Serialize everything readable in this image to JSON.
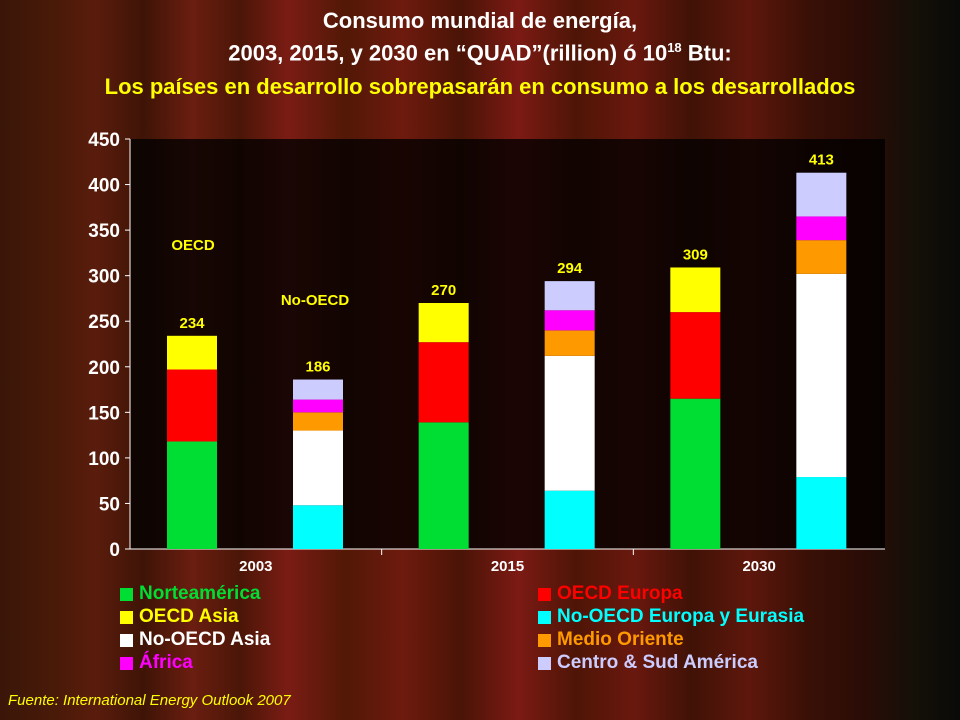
{
  "title_line1": "Consumo mundial de energía,",
  "title_line2_pre": "2003, 2015, y 2030 en “QUAD”(rillion) ó 10",
  "title_line2_sup": "18",
  "title_line2_post": " Btu:",
  "title_line3": "Los países en desarrollo sobrepasarán en consumo a los desarrollados",
  "annotations": {
    "oecd": "OECD",
    "non_oecd": "No-OECD"
  },
  "source": "Fuente: International Energy Outlook 2007",
  "colors": {
    "Norteamérica": "#00dd33",
    "OECD Europa": "#ff0000",
    "OECD Asia": "#ffff00",
    "No-OECD Europa y Eurasia": "#00ffff",
    "No-OECD Asia": "#ffffff",
    "Medio Oriente": "#ff9900",
    "África": "#ff00ff",
    "Centro & Sud América": "#ccccff"
  },
  "chart_data": {
    "type": "bar",
    "stacked": true,
    "categories": [
      "2003",
      "2015",
      "2030"
    ],
    "ylim": [
      0,
      450
    ],
    "yticks": [
      0,
      50,
      100,
      150,
      200,
      250,
      300,
      350,
      400,
      450
    ],
    "groups": [
      "OECD",
      "No-OECD"
    ],
    "totals": {
      "OECD": [
        234,
        270,
        309
      ],
      "No-OECD": [
        186,
        294,
        413
      ]
    },
    "series": [
      {
        "name": "Norteamérica",
        "group": "OECD",
        "values": [
          118,
          139,
          165
        ]
      },
      {
        "name": "OECD Europa",
        "group": "OECD",
        "values": [
          79,
          88,
          95
        ]
      },
      {
        "name": "OECD Asia",
        "group": "OECD",
        "values": [
          37,
          43,
          49
        ]
      },
      {
        "name": "No-OECD Europa y Eurasia",
        "group": "No-OECD",
        "values": [
          48,
          64,
          79
        ]
      },
      {
        "name": "No-OECD Asia",
        "group": "No-OECD",
        "values": [
          82,
          148,
          223
        ]
      },
      {
        "name": "Medio Oriente",
        "group": "No-OECD",
        "values": [
          20,
          28,
          37
        ]
      },
      {
        "name": "África",
        "group": "No-OECD",
        "values": [
          14,
          22,
          26
        ]
      },
      {
        "name": "Centro & Sud América",
        "group": "No-OECD",
        "values": [
          22,
          32,
          48
        ]
      }
    ],
    "legend": [
      [
        "Norteamérica",
        "OECD Europa"
      ],
      [
        "OECD Asia",
        "No-OECD Europa y Eurasia"
      ],
      [
        "No-OECD Asia",
        "Medio Oriente"
      ],
      [
        "África",
        "Centro & Sud América"
      ]
    ]
  }
}
